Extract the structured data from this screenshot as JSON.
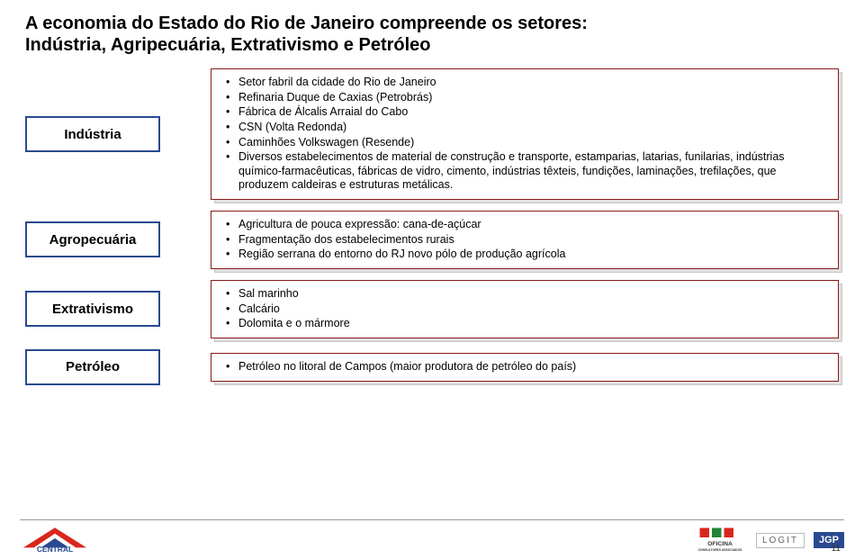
{
  "title_line1": "A economia do Estado do Rio de Janeiro compreende os setores:",
  "title_line2": "Indústria, Agripecuária, Extrativismo e Petróleo",
  "colors": {
    "sector_border": "#2a4a90",
    "detail_border": "#8a1a1a",
    "shadow": "#e0e0e0",
    "page_bg": "#ffffff"
  },
  "sectors": [
    {
      "name": "Indústria",
      "items": [
        "Setor fabril da cidade do Rio de Janeiro",
        "Refinaria Duque de Caxias (Petrobrás)",
        "Fábrica de Álcalis Arraial do Cabo",
        "CSN (Volta Redonda)",
        "Caminhões Volkswagen (Resende)",
        "Diversos estabelecimentos de material de construção e transporte, estamparias, latarias, funilarias, indústrias químico-farmacêuticas, fábricas de vidro, cimento, indústrias têxteis, fundições, laminações, trefilações, que produzem caldeiras e estruturas metálicas."
      ]
    },
    {
      "name": "Agropecuária",
      "items": [
        "Agricultura de pouca expressão: cana-de-açúcar",
        "Fragmentação dos estabelecimentos rurais",
        "Região serrana do entorno do RJ novo pólo de produção agrícola"
      ]
    },
    {
      "name": "Extrativismo",
      "items": [
        "Sal marinho",
        "Calcário",
        "Dolomita e o mármore"
      ]
    },
    {
      "name": "Petróleo",
      "items": [
        "Petróleo no litoral de Campos (maior produtora de petróleo do país)"
      ]
    }
  ],
  "footer": {
    "central_name": "CENTRAL",
    "central_sub": "",
    "oficina_name": "OFICINA",
    "oficina_sub": "CONSULTORES ASSOCIADOS",
    "logit": "LOGIT",
    "jgp": "JGP"
  },
  "page_number": "11"
}
